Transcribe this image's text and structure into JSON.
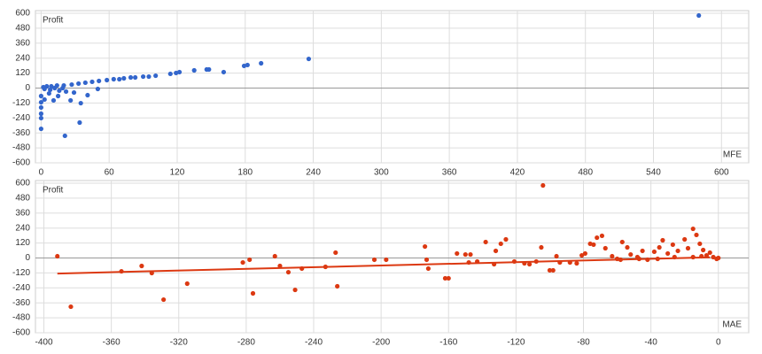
{
  "chart_data": [
    {
      "type": "scatter",
      "y_label": "Profit",
      "x_label": "MFE",
      "color": "#3366cc",
      "x": [
        580,
        236,
        194,
        182,
        179,
        161,
        148,
        146,
        135,
        122,
        119,
        114,
        101,
        95,
        90,
        83,
        79,
        73,
        69,
        64,
        58,
        51,
        45,
        39,
        33,
        27,
        20,
        14,
        9,
        5,
        2,
        0,
        0,
        0,
        0,
        0,
        0,
        3,
        7,
        11,
        15,
        21,
        34,
        35,
        26,
        22,
        50,
        41,
        29,
        16,
        8,
        3,
        12,
        19
      ],
      "values": [
        582,
        234,
        199,
        185,
        178,
        128,
        149,
        149,
        142,
        128,
        121,
        114,
        99,
        92,
        92,
        85,
        85,
        78,
        71,
        71,
        64,
        57,
        50,
        43,
        36,
        28,
        21,
        21,
        14,
        14,
        7,
        -327,
        -241,
        -206,
        -156,
        -114,
        -64,
        -92,
        -43,
        -99,
        -64,
        -383,
        -277,
        -121,
        -99,
        -28,
        -7,
        -57,
        -36,
        -21,
        -14,
        -7,
        0,
        0
      ],
      "xlim": [
        -5,
        624
      ],
      "ylim": [
        -600,
        600
      ],
      "xticks": [
        0,
        60,
        120,
        180,
        240,
        300,
        360,
        420,
        480,
        540,
        600
      ],
      "yticks": [
        -600,
        -480,
        -360,
        -240,
        -120,
        0,
        120,
        240,
        360,
        480,
        600
      ],
      "grid": true
    },
    {
      "type": "scatter",
      "y_label": "Profit",
      "x_label": "MAE",
      "color": "#dc3912",
      "x": [
        -392,
        -384,
        -342,
        -354,
        -336,
        -329,
        -315,
        -282,
        -278,
        -276,
        -263,
        -260,
        -255,
        -251,
        -247,
        -233,
        -227,
        -226,
        -204,
        -197,
        -174,
        -173,
        -172,
        -162,
        -160,
        -155,
        -150,
        -148,
        -147,
        -143,
        -138,
        -133,
        -132,
        -129,
        -126,
        -121,
        -115,
        -112,
        -108,
        -104,
        -105,
        -100,
        -98,
        -96,
        -94,
        -88,
        -84,
        -81,
        -79,
        -76,
        -74,
        -72,
        -69,
        -67,
        -63,
        -60,
        -57,
        -54,
        -52,
        -48,
        -45,
        -42,
        -38,
        -35,
        -33,
        -30,
        -27,
        -24,
        -20,
        -18,
        -15,
        -13,
        -11,
        -9,
        -7,
        -5,
        -3,
        -1,
        0,
        -58,
        -47,
        -36,
        -26,
        -15,
        -10
      ],
      "values": [
        14,
        -391,
        -64,
        -107,
        -121,
        -334,
        -206,
        -36,
        -14,
        -284,
        14,
        -64,
        -114,
        -256,
        -85,
        -71,
        43,
        -227,
        -14,
        -14,
        92,
        -14,
        -85,
        -163,
        -163,
        36,
        28,
        -36,
        28,
        -28,
        128,
        -50,
        57,
        114,
        149,
        -28,
        -43,
        -50,
        -28,
        582,
        85,
        -99,
        -99,
        14,
        -36,
        -36,
        -43,
        21,
        36,
        114,
        107,
        163,
        178,
        78,
        14,
        -7,
        128,
        85,
        28,
        7,
        57,
        -14,
        50,
        85,
        142,
        36,
        107,
        57,
        149,
        78,
        234,
        185,
        114,
        64,
        21,
        43,
        7,
        -7,
        0,
        -14,
        -7,
        -7,
        7,
        7,
        14
      ],
      "trendline": {
        "x": [
          -392,
          -5
        ],
        "values": [
          -125,
          5
        ],
        "color": "#dc3912"
      },
      "xlim": [
        -405,
        18
      ],
      "ylim": [
        -600,
        600
      ],
      "xticks": [
        -400,
        -360,
        -320,
        -280,
        -240,
        -200,
        -160,
        -120,
        -80,
        -40,
        0
      ],
      "yticks": [
        -600,
        -480,
        -360,
        -240,
        -120,
        0,
        120,
        240,
        360,
        480,
        600
      ],
      "grid": true
    }
  ]
}
